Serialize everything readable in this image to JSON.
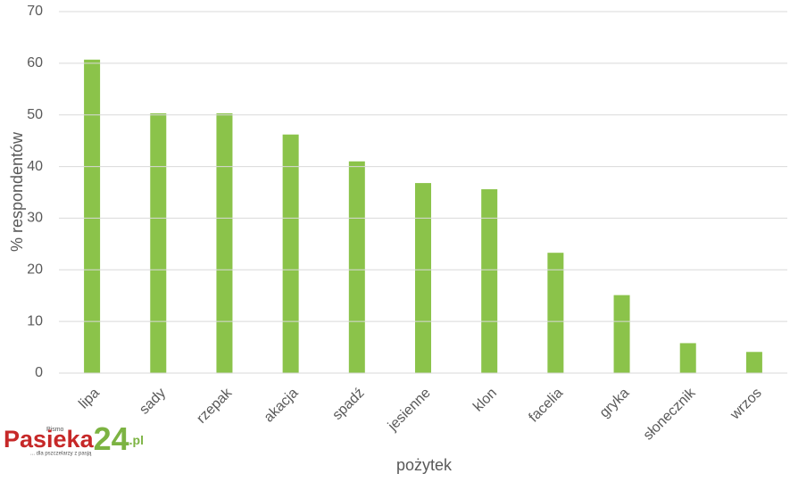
{
  "chart_data": {
    "type": "bar",
    "categories": [
      "lipa",
      "sady",
      "rzepak",
      "akacja",
      "spadź",
      "jesienne",
      "klon",
      "facelia",
      "gryka",
      "słonecznik",
      "wrzos"
    ],
    "values": [
      60.7,
      50.3,
      50.3,
      46.2,
      41,
      36.8,
      35.6,
      23.3,
      15.1,
      5.8,
      4.1
    ],
    "color": "#8bc34a",
    "ylim": [
      0,
      70
    ],
    "yticks": [
      0,
      10,
      20,
      30,
      40,
      50,
      60,
      70
    ],
    "grid": true,
    "ylabel": "% respondentów",
    "xlabel": "pożytek"
  },
  "logo": {
    "small": "Pismo",
    "name": "Pasieka",
    "number": "24",
    "domain": ".pl",
    "tagline": "... dla pszczelarzy z pasją"
  }
}
